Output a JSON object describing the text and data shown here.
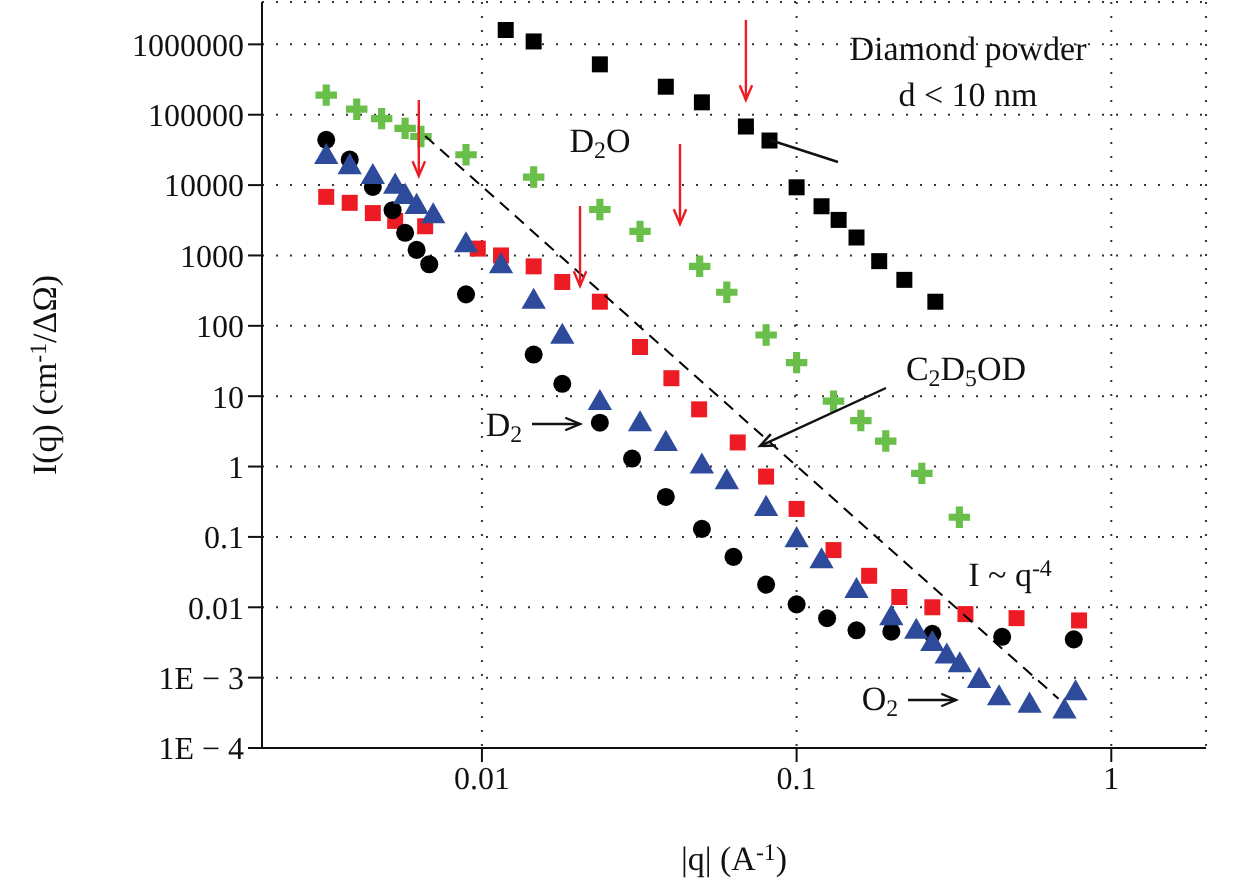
{
  "chart_data": {
    "type": "scatter",
    "xlabel": "|q| (A$^{-1}$)",
    "ylabel": "I(q) (cm$^{-1}$/ΔΩ)",
    "log": "xy",
    "grid": true,
    "xlim": [
      0.002,
      2
    ],
    "xticks": [
      0.01,
      0.1,
      1
    ],
    "ylim": [
      0.0001,
      4000000
    ],
    "yticks": [
      1000000,
      100000,
      10000,
      1000,
      100,
      10,
      1,
      0.1,
      0.01,
      {
        "value": 0.001,
        "label": "1E − 3"
      },
      {
        "value": 0.0001,
        "label": "1E − 4"
      }
    ],
    "annotations": [
      "d < 10 nm"
    ],
    "series": [
      {
        "name": "Diamond powder",
        "color": "#000000",
        "marker": "square",
        "x": [
          0.0119,
          0.0146,
          0.0237,
          0.0384,
          0.05,
          0.069,
          0.082,
          0.1,
          0.12,
          0.136,
          0.155,
          0.183,
          0.22,
          0.276
        ],
        "values": [
          1600000,
          1100000,
          520000,
          250000,
          150000,
          68000,
          43000,
          9300,
          5000,
          3200,
          1800,
          830,
          450,
          220
        ]
      },
      {
        "name": "D$_{2}$O",
        "color": "#6abf4b",
        "marker": "cross",
        "x": [
          0.0032,
          0.004,
          0.0048,
          0.0057,
          0.0064,
          0.0089,
          0.0146,
          0.0237,
          0.0318,
          0.0492,
          0.06,
          0.08,
          0.1,
          0.131,
          0.16,
          0.192,
          0.25,
          0.329
        ],
        "values": [
          190000,
          120000,
          88000,
          64000,
          49000,
          27000,
          13000,
          4500,
          2200,
          700,
          300,
          74,
          30,
          8.5,
          4.5,
          2.3,
          0.8,
          0.19
        ]
      },
      {
        "name": "C$_{2}$D$_{5}$OD",
        "color": "#ed1c24",
        "marker": "square",
        "x": [
          0.0032,
          0.0038,
          0.0045,
          0.0053,
          0.0066,
          0.0097,
          0.0115,
          0.0146,
          0.018,
          0.0237,
          0.0318,
          0.04,
          0.049,
          0.065,
          0.08,
          0.1,
          0.131,
          0.17,
          0.212,
          0.27,
          0.344,
          0.5,
          0.79
        ],
        "values": [
          6800,
          5600,
          4000,
          3100,
          2600,
          1250,
          1000,
          700,
          420,
          220,
          50,
          18,
          6.5,
          2.2,
          0.72,
          0.25,
          0.065,
          0.028,
          0.014,
          0.01,
          0.008,
          0.007,
          0.0065
        ]
      },
      {
        "name": "D$_{2}$",
        "color": "#000000",
        "marker": "circle",
        "x": [
          0.0032,
          0.0038,
          0.0045,
          0.0052,
          0.0057,
          0.0062,
          0.0068,
          0.0089,
          0.0146,
          0.018,
          0.0237,
          0.03,
          0.0384,
          0.05,
          0.063,
          0.08,
          0.1,
          0.125,
          0.155,
          0.2,
          0.27,
          0.45,
          0.76
        ],
        "values": [
          44000,
          23000,
          9400,
          4400,
          2100,
          1200,
          750,
          280,
          39,
          15,
          4.2,
          1.3,
          0.37,
          0.13,
          0.052,
          0.021,
          0.011,
          0.007,
          0.0047,
          0.0045,
          0.0042,
          0.0038,
          0.0035
        ]
      },
      {
        "name": "O$_{2}$",
        "color": "#2e4b9b",
        "marker": "triangle",
        "x": [
          0.0032,
          0.0038,
          0.0045,
          0.0053,
          0.0057,
          0.0062,
          0.007,
          0.0089,
          0.0115,
          0.0146,
          0.018,
          0.0237,
          0.0318,
          0.0384,
          0.05,
          0.06,
          0.08,
          0.1,
          0.12,
          0.155,
          0.2,
          0.24,
          0.27,
          0.3,
          0.33,
          0.38,
          0.44,
          0.55,
          0.71,
          0.77
        ],
        "values": [
          25000,
          18000,
          13000,
          9500,
          6800,
          4900,
          3600,
          1400,
          700,
          220,
          70,
          8,
          4,
          2.1,
          1,
          0.6,
          0.25,
          0.09,
          0.045,
          0.017,
          0.007,
          0.0045,
          0.003,
          0.002,
          0.0015,
          0.0009,
          0.00051,
          0.0004,
          0.00033,
          0.0006
        ]
      },
      {
        "name": "I ~ q$^{-4}$",
        "type": "line",
        "color": "#000000",
        "marker": "none",
        "line_style": "dashed",
        "x": [
          0.0066,
          0.68
        ],
        "values": [
          50000,
          0.0005
        ]
      }
    ]
  }
}
